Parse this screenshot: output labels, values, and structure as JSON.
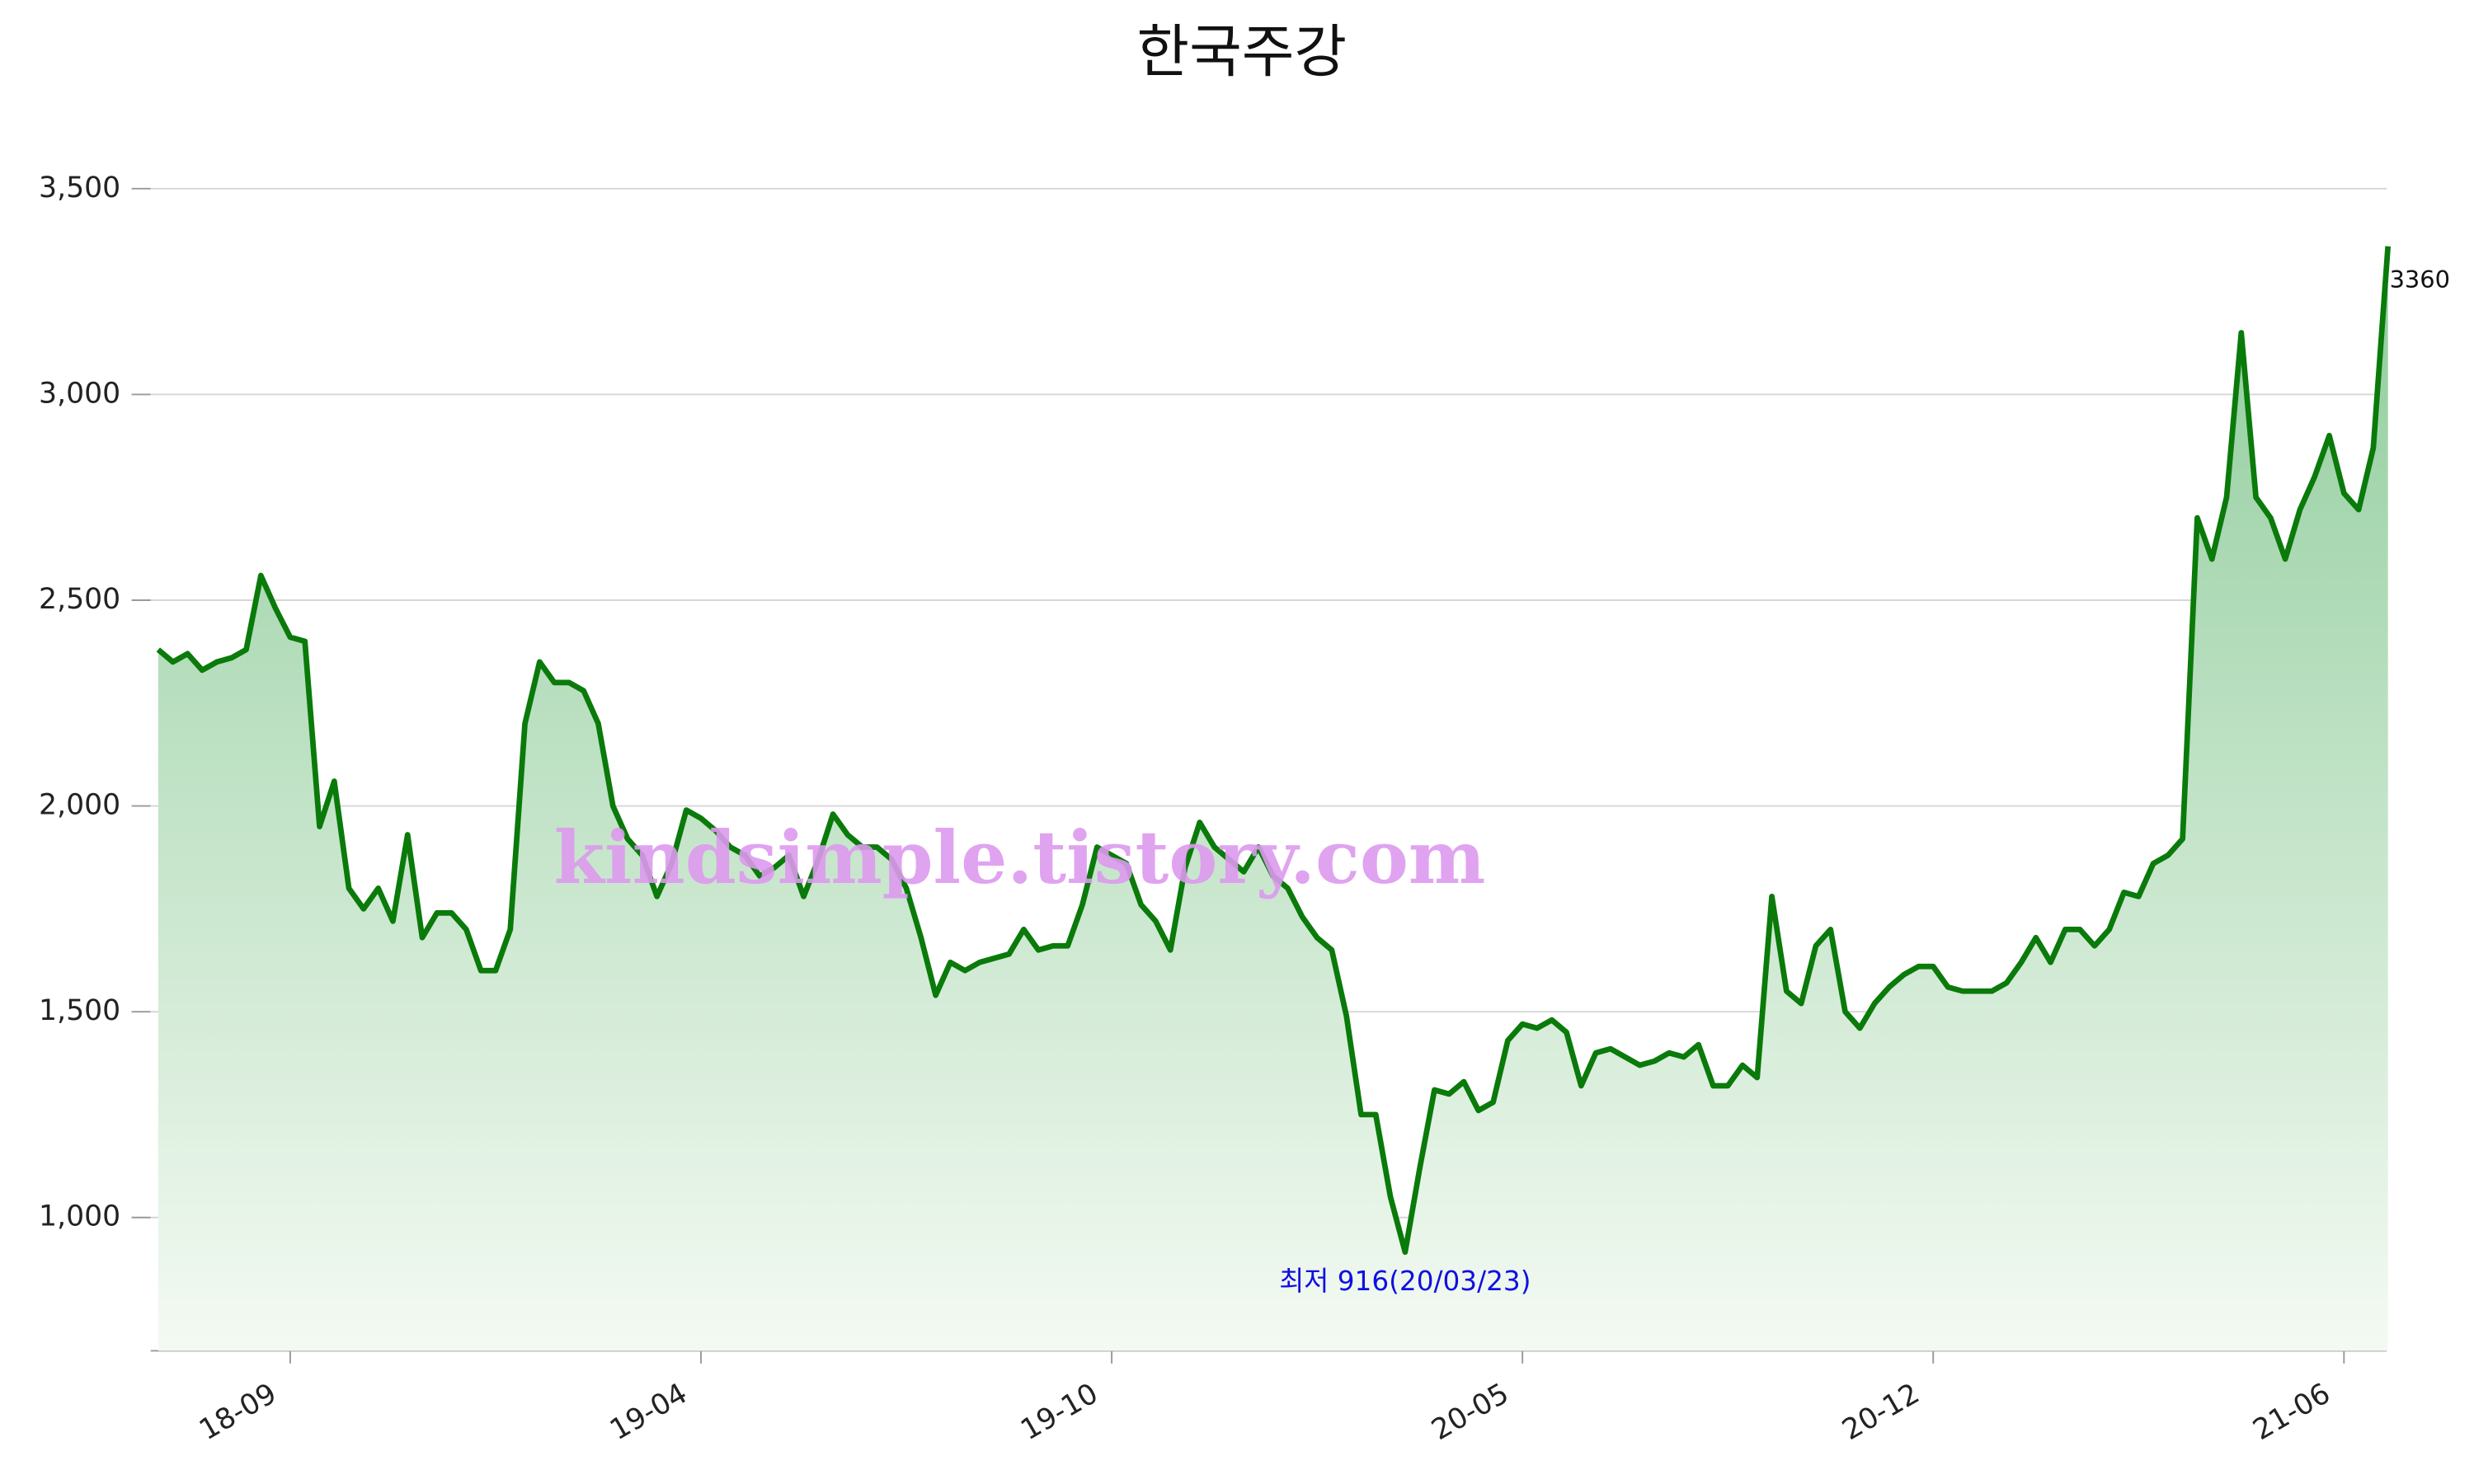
{
  "chart_data": {
    "type": "area",
    "title": "한국주강",
    "annotation": "최저 916(20/03/23)",
    "watermark": "kindsimple.tistory.com",
    "categories": [
      null,
      null,
      null,
      null,
      null,
      null,
      null,
      null,
      null,
      "18-09",
      null,
      null,
      null,
      null,
      null,
      null,
      null,
      null,
      null,
      null,
      null,
      null,
      null,
      null,
      null,
      null,
      null,
      null,
      null,
      null,
      null,
      null,
      null,
      null,
      null,
      null,
      null,
      "19-04",
      null,
      null,
      null,
      null,
      null,
      null,
      null,
      null,
      null,
      null,
      null,
      null,
      null,
      null,
      null,
      null,
      null,
      null,
      null,
      null,
      null,
      null,
      null,
      null,
      null,
      null,
      null,
      "19-10",
      null,
      null,
      null,
      null,
      null,
      null,
      null,
      null,
      null,
      null,
      null,
      null,
      null,
      null,
      null,
      null,
      null,
      null,
      null,
      null,
      null,
      null,
      null,
      null,
      null,
      null,
      null,
      "20-05",
      null,
      null,
      null,
      null,
      null,
      null,
      null,
      null,
      null,
      null,
      null,
      null,
      null,
      null,
      null,
      null,
      null,
      null,
      null,
      null,
      null,
      null,
      null,
      null,
      null,
      null,
      null,
      "20-12",
      null,
      null,
      null,
      null,
      null,
      null,
      null,
      null,
      null,
      null,
      null,
      null,
      null,
      null,
      null,
      null,
      null,
      null,
      null,
      null,
      null,
      null,
      null,
      null,
      null,
      null,
      null,
      "21-06",
      null,
      null,
      null
    ],
    "series": [
      {
        "color": "#0a7a0a",
        "values": [
          2380,
          2350,
          2370,
          2330,
          2350,
          2360,
          2380,
          2560,
          2480,
          2410,
          2400,
          1950,
          2060,
          1800,
          1750,
          1800,
          1720,
          1930,
          1680,
          1740,
          1740,
          1700,
          1600,
          1600,
          1700,
          2200,
          2350,
          2300,
          2300,
          2280,
          2200,
          2000,
          1920,
          1880,
          1780,
          1860,
          1990,
          1970,
          1940,
          1900,
          1880,
          1830,
          1850,
          1880,
          1780,
          1870,
          1980,
          1930,
          1900,
          1900,
          1870,
          1800,
          1680,
          1540,
          1620,
          1600,
          1620,
          1630,
          1640,
          1700,
          1650,
          1660,
          1660,
          1760,
          1900,
          1880,
          1860,
          1760,
          1720,
          1650,
          1850,
          1960,
          1900,
          1870,
          1840,
          1900,
          1830,
          1800,
          1730,
          1680,
          1650,
          1490,
          1250,
          1250,
          1050,
          916,
          1120,
          1310,
          1300,
          1330,
          1260,
          1280,
          1430,
          1470,
          1460,
          1480,
          1450,
          1320,
          1400,
          1410,
          1390,
          1370,
          1380,
          1400,
          1390,
          1420,
          1320,
          1320,
          1370,
          1340,
          1780,
          1550,
          1520,
          1660,
          1700,
          1500,
          1460,
          1520,
          1560,
          1590,
          1610,
          1610,
          1560,
          1550,
          1550,
          1550,
          1570,
          1620,
          1680,
          1620,
          1700,
          1700,
          1660,
          1700,
          1790,
          1780,
          1860,
          1880,
          1920,
          2700,
          2600,
          2750,
          3150,
          2750,
          2700,
          2600,
          2720,
          2800,
          2900,
          2760,
          2720,
          2870,
          3360
        ]
      }
    ],
    "ylim": [
      676,
      3500
    ],
    "yticks": [
      {
        "value": 1000,
        "label": "1,000"
      },
      {
        "value": 1500,
        "label": "1,500"
      },
      {
        "value": 2000,
        "label": "2,000"
      },
      {
        "value": 2500,
        "label": "2,500"
      },
      {
        "value": 3000,
        "label": "3,000"
      },
      {
        "value": 3500,
        "label": "3,500"
      }
    ],
    "grid": true
  }
}
